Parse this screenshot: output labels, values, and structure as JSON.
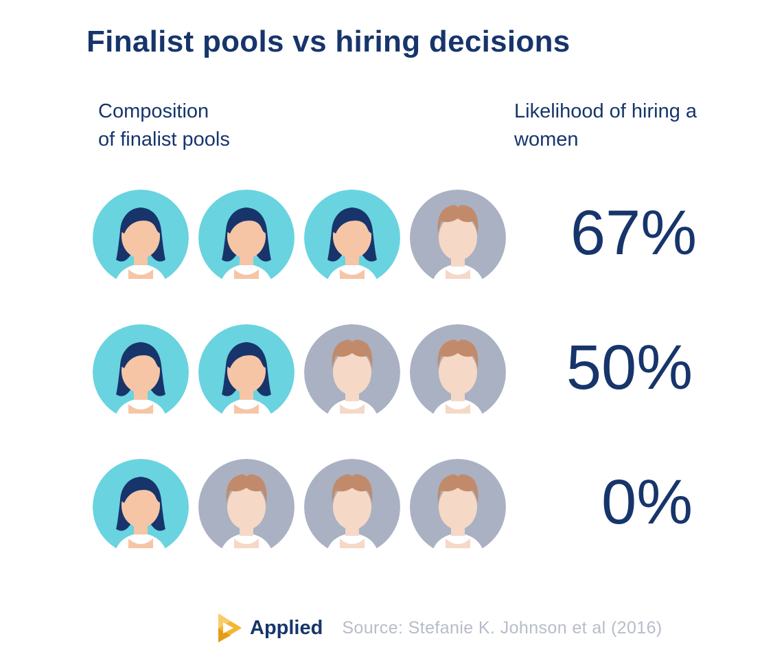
{
  "title": "Finalist pools vs hiring decisions",
  "left_header": {
    "line1": "Composition",
    "line2": "of finalist pools"
  },
  "right_header": {
    "line1": "Likelihood of hiring a",
    "line2": "women"
  },
  "rows": [
    {
      "pool": [
        "woman",
        "woman",
        "woman",
        "man"
      ],
      "likelihood": "67%"
    },
    {
      "pool": [
        "woman",
        "woman",
        "man",
        "man"
      ],
      "likelihood": "50%"
    },
    {
      "pool": [
        "woman",
        "man",
        "man",
        "man"
      ],
      "likelihood": "0%"
    }
  ],
  "footer": {
    "brand": "Applied",
    "source": "Source: Stefanie K. Johnson et al (2016)"
  },
  "colors": {
    "navy": "#17356b",
    "woman_bg": "#6ad3e0",
    "man_bg": "#a9b1c2",
    "woman_skin": "#f5c5a6",
    "man_skin": "#f5d8c6",
    "man_hair": "#c18b6b",
    "shirt": "#ffffff",
    "logo_gold": "#f3b632"
  }
}
